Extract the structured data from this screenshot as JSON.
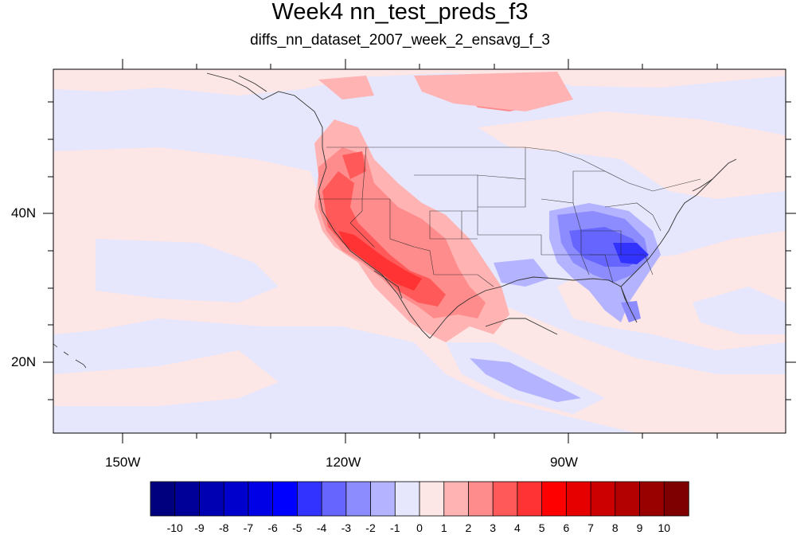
{
  "title": "Week4 nn_test_preds_f3",
  "subtitle": "diffs_nn_dataset_2007_week_2_ensavg_f_3",
  "map": {
    "lon_labels": [
      "150W",
      "120W",
      "90W"
    ],
    "lat_labels": [
      "40N",
      "20N"
    ],
    "lon_range": [
      -159,
      -60
    ],
    "lat_range": [
      10,
      59
    ]
  },
  "colorbar": {
    "labels": [
      "-10",
      "-9",
      "-8",
      "-7",
      "-6",
      "-5",
      "-4",
      "-3",
      "-2",
      "-1",
      "0",
      "1",
      "2",
      "3",
      "4",
      "5",
      "6",
      "7",
      "8",
      "9",
      "10"
    ],
    "colors": [
      "#00007f",
      "#000099",
      "#0000b3",
      "#0000cc",
      "#0000e6",
      "#0000ff",
      "#3333ff",
      "#6666ff",
      "#8c8cff",
      "#b3b3ff",
      "#e6e6fc",
      "#fde6e6",
      "#ffb3b3",
      "#ff8c8c",
      "#ff5959",
      "#ff3333",
      "#ff0000",
      "#e60000",
      "#cc0000",
      "#b30000",
      "#990000",
      "#7f0000"
    ]
  }
}
